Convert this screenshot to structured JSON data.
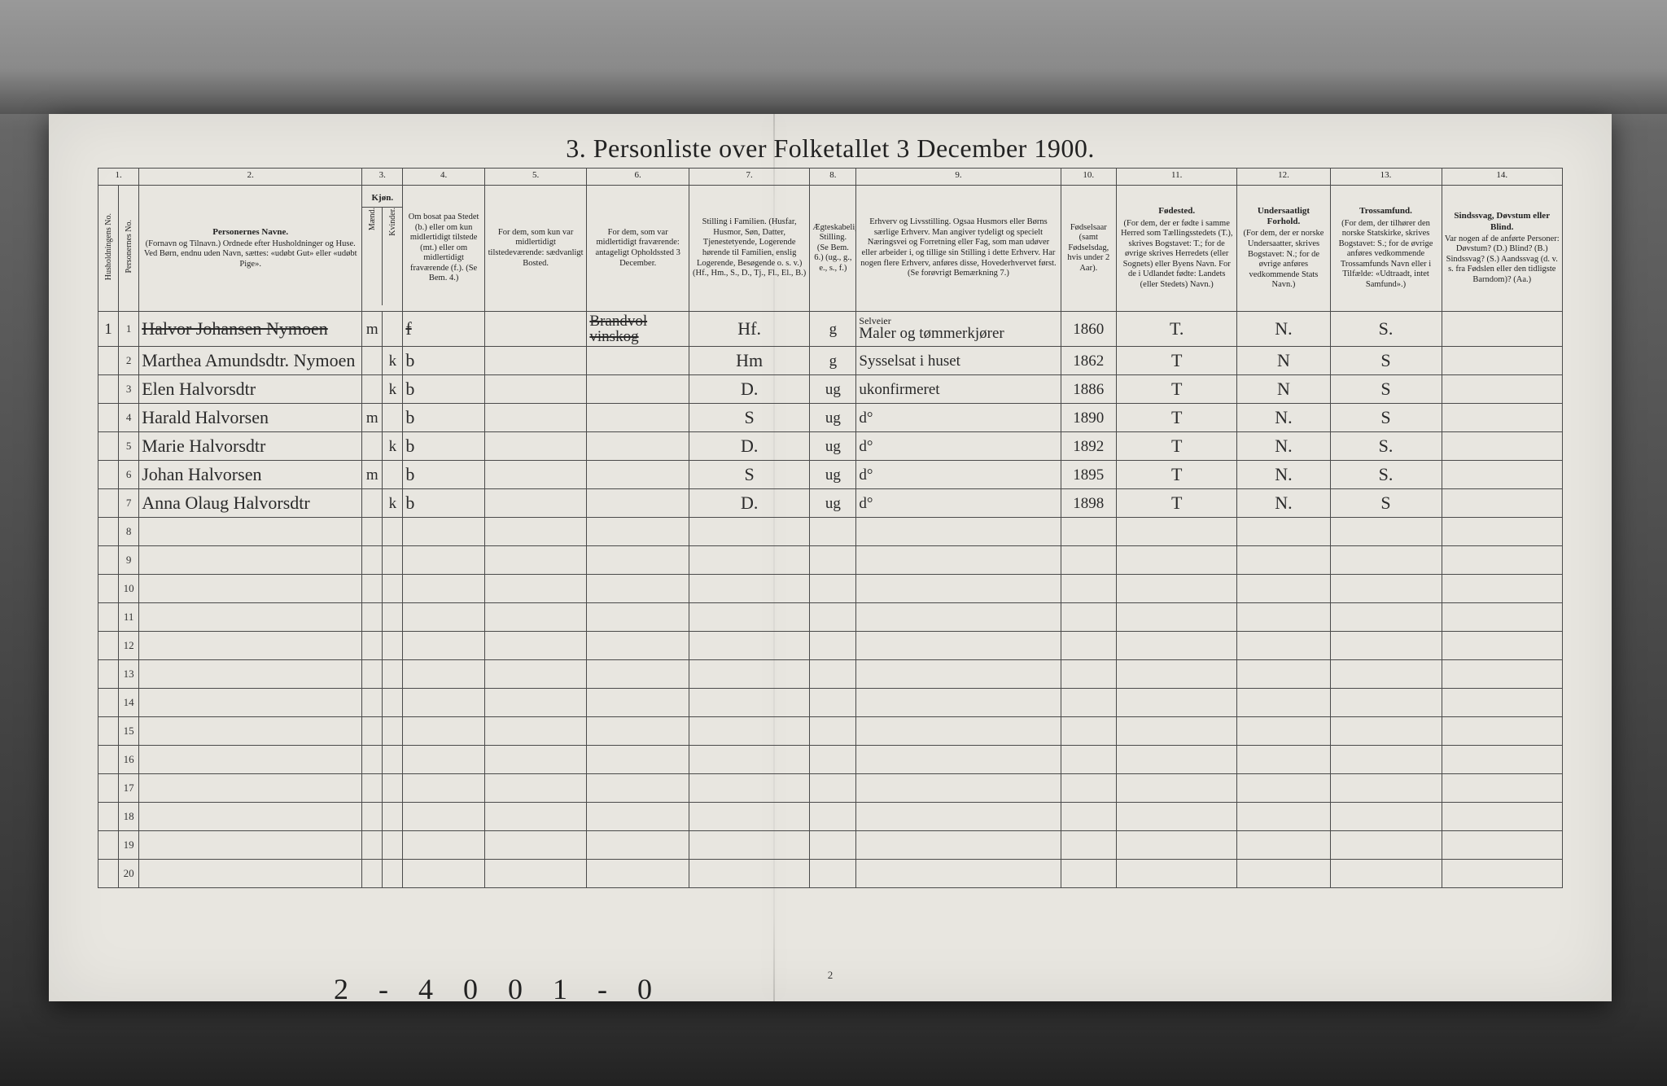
{
  "title": "3. Personliste over Folketallet 3 December 1900.",
  "page_number": "2",
  "bottom_annotation": "2 - 4 0 0 1 - 0",
  "column_numbers": [
    "1.",
    "2.",
    "3.",
    "4.",
    "5.",
    "6.",
    "7.",
    "8.",
    "9.",
    "10.",
    "11.",
    "12.",
    "13.",
    "14."
  ],
  "headers": {
    "c1a": "Husholdningens No.",
    "c1b": "Personernes No.",
    "c2_title": "Personernes Navne.",
    "c2_body": "(Fornavn og Tilnavn.)\nOrdnede efter Husholdninger og Huse.\nVed Børn, endnu uden Navn, sættes: «udøbt Gut» eller «udøbt Pige».",
    "c3_title": "Kjøn.",
    "c3a": "Mænd.",
    "c3b": "Kvinder.",
    "c4": "Om bosat paa Stedet (b.) eller om kun midlertidigt tilstede (mt.) eller om midlertidigt fraværende (f.). (Se Bem. 4.)",
    "c5": "For dem, som kun var midlertidigt tilstedeværende:\nsædvanligt Bosted.",
    "c6": "For dem, som var midlertidigt fraværende:\nantageligt Opholdssted 3 December.",
    "c7": "Stilling i Familien. (Husfar, Husmor, Søn, Datter, Tjenestetyende, Logerende hørende til Familien, enslig Logerende, Besøgende o. s. v.)\n(Hf., Hm., S., D., Tj., Fl., El., B.)",
    "c8": "Ægteskabelig Stilling. (Se Bem. 6.)\n(ug., g., e., s., f.)",
    "c9": "Erhverv og Livsstilling. Ogsaa Husmors eller Børns særlige Erhverv. Man angiver tydeligt og specielt Næringsvei og Forretning eller Fag, som man udøver eller arbeider i, og tillige sin Stilling i dette Erhverv. Har nogen flere Erhverv, anføres disse, Hovederhvervet først.\n(Se forøvrigt Bemærkning 7.)",
    "c10": "Fødselsaar (samt Fødselsdag, hvis under 2 Aar).",
    "c11_title": "Fødested.",
    "c11_body": "(For dem, der er fødte i samme Herred som Tællingsstedets (T.), skrives Bogstavet: T.; for de øvrige skrives Herredets (eller Sognets) eller Byens Navn. For de i Udlandet fødte: Landets (eller Stedets) Navn.)",
    "c12_title": "Undersaatligt Forhold.",
    "c12_body": "(For dem, der er norske Undersaatter, skrives Bogstavet: N.; for de øvrige anføres vedkommende Stats Navn.)",
    "c13_title": "Trossamfund.",
    "c13_body": "(For dem, der tilhører den norske Statskirke, skrives Bogstavet: S.; for de øvrige anføres vedkommende Trossamfunds Navn eller i Tilfælde: «Udtraadt, intet Samfund».)",
    "c14_title": "Sindssvag, Døvstum eller Blind.",
    "c14_body": "Var nogen af de anførte Personer: Døvstum? (D.) Blind? (B.) Sindssvag? (S.) Aandssvag (d. v. s. fra Fødslen eller den tidligste Barndom)? (Aa.)"
  },
  "rows": [
    {
      "hh": "1",
      "pno": "1",
      "name": "Halvor Johansen Nymoen",
      "name_strike": true,
      "sex_m": "m",
      "sex_k": "",
      "status": "f",
      "status_strike": true,
      "c5": "",
      "c6": "Brandvol\nvinskog",
      "c6_strike": true,
      "fam": "Hf.",
      "civil": "g",
      "occ_sup": "Selveier",
      "occ": "Maler og tømmerkjører",
      "year": "1860",
      "birthplace": "T.",
      "nat": "N.",
      "faith": "S.",
      "c14": ""
    },
    {
      "hh": "",
      "pno": "2",
      "name": "Marthea Amundsdtr. Nymoen",
      "sex_m": "",
      "sex_k": "k",
      "status": "b",
      "c5": "",
      "c6": "",
      "fam": "Hm",
      "civil": "g",
      "occ": "Sysselsat i huset",
      "year": "1862",
      "birthplace": "T",
      "nat": "N",
      "faith": "S",
      "c14": ""
    },
    {
      "hh": "",
      "pno": "3",
      "name": "Elen Halvorsdtr",
      "sex_m": "",
      "sex_k": "k",
      "status": "b",
      "c5": "",
      "c6": "",
      "fam": "D.",
      "civil": "ug",
      "occ": "ukonfirmeret",
      "year": "1886",
      "birthplace": "T",
      "nat": "N",
      "faith": "S",
      "c14": ""
    },
    {
      "hh": "",
      "pno": "4",
      "name": "Harald Halvorsen",
      "sex_m": "m",
      "sex_k": "",
      "status": "b",
      "c5": "",
      "c6": "",
      "fam": "S",
      "civil": "ug",
      "occ": "d°",
      "year": "1890",
      "birthplace": "T",
      "nat": "N.",
      "faith": "S",
      "c14": ""
    },
    {
      "hh": "",
      "pno": "5",
      "name": "Marie Halvorsdtr",
      "sex_m": "",
      "sex_k": "k",
      "status": "b",
      "c5": "",
      "c6": "",
      "fam": "D.",
      "civil": "ug",
      "occ": "d°",
      "year": "1892",
      "birthplace": "T",
      "nat": "N.",
      "faith": "S.",
      "c14": ""
    },
    {
      "hh": "",
      "pno": "6",
      "name": "Johan Halvorsen",
      "sex_m": "m",
      "sex_k": "",
      "status": "b",
      "c5": "",
      "c6": "",
      "fam": "S",
      "civil": "ug",
      "occ": "d°",
      "year": "1895",
      "birthplace": "T",
      "nat": "N.",
      "faith": "S.",
      "c14": ""
    },
    {
      "hh": "",
      "pno": "7",
      "name": "Anna Olaug Halvorsdtr",
      "sex_m": "",
      "sex_k": "k",
      "status": "b",
      "c5": "",
      "c6": "",
      "fam": "D.",
      "civil": "ug",
      "occ": "d°",
      "year": "1898",
      "birthplace": "T",
      "nat": "N.",
      "faith": "S",
      "c14": ""
    }
  ],
  "blank_row_numbers": [
    "8",
    "9",
    "10",
    "11",
    "12",
    "13",
    "14",
    "15",
    "16",
    "17",
    "18",
    "19",
    "20"
  ],
  "colors": {
    "paper": "#e8e6e0",
    "ink": "#222222",
    "border": "#4a4a4a",
    "background": "#3a3a3a"
  }
}
